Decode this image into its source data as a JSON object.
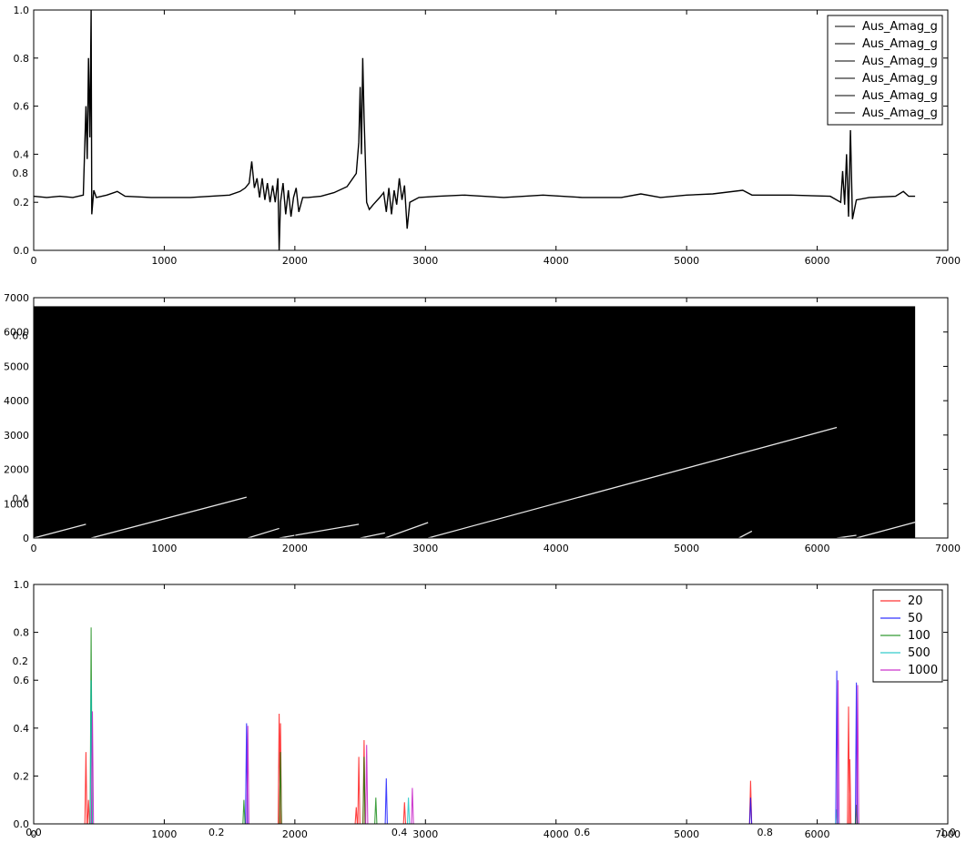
{
  "chart_data": [
    {
      "type": "line",
      "panel": "top",
      "xlim": [
        0,
        7000
      ],
      "ylim": [
        0.0,
        1.0
      ],
      "xticks": [
        "0",
        "1000",
        "2000",
        "3000",
        "4000",
        "5000",
        "6000",
        "7000"
      ],
      "yticks": [
        "0.0",
        "0.2",
        "0.4",
        "0.6",
        "0.8",
        "1.0"
      ],
      "legend_position": "top-right",
      "legend": [
        "Aus_Amag_g",
        "Aus_Amag_g",
        "Aus_Amag_g",
        "Aus_Amag_g",
        "Aus_Amag_g",
        "Aus_Amag_g"
      ],
      "series": [
        {
          "name": "Aus_Amag_g",
          "color": "#000000",
          "points": [
            [
              0,
              0.225
            ],
            [
              100,
              0.22
            ],
            [
              200,
              0.225
            ],
            [
              300,
              0.22
            ],
            [
              380,
              0.23
            ],
            [
              400,
              0.6
            ],
            [
              410,
              0.38
            ],
            [
              420,
              0.8
            ],
            [
              430,
              0.47
            ],
            [
              440,
              1.0
            ],
            [
              445,
              0.15
            ],
            [
              460,
              0.25
            ],
            [
              480,
              0.22
            ],
            [
              560,
              0.23
            ],
            [
              640,
              0.245
            ],
            [
              700,
              0.225
            ],
            [
              900,
              0.22
            ],
            [
              1200,
              0.22
            ],
            [
              1500,
              0.23
            ],
            [
              1580,
              0.245
            ],
            [
              1620,
              0.26
            ],
            [
              1650,
              0.28
            ],
            [
              1670,
              0.37
            ],
            [
              1690,
              0.26
            ],
            [
              1710,
              0.3
            ],
            [
              1730,
              0.22
            ],
            [
              1750,
              0.3
            ],
            [
              1770,
              0.21
            ],
            [
              1790,
              0.28
            ],
            [
              1810,
              0.2
            ],
            [
              1830,
              0.27
            ],
            [
              1850,
              0.2
            ],
            [
              1870,
              0.3
            ],
            [
              1880,
              0.0
            ],
            [
              1890,
              0.2
            ],
            [
              1910,
              0.28
            ],
            [
              1930,
              0.15
            ],
            [
              1950,
              0.25
            ],
            [
              1970,
              0.14
            ],
            [
              1990,
              0.22
            ],
            [
              2010,
              0.26
            ],
            [
              2030,
              0.16
            ],
            [
              2060,
              0.22
            ],
            [
              2100,
              0.22
            ],
            [
              2200,
              0.225
            ],
            [
              2300,
              0.24
            ],
            [
              2400,
              0.265
            ],
            [
              2470,
              0.32
            ],
            [
              2490,
              0.45
            ],
            [
              2500,
              0.68
            ],
            [
              2510,
              0.4
            ],
            [
              2520,
              0.8
            ],
            [
              2530,
              0.55
            ],
            [
              2550,
              0.2
            ],
            [
              2570,
              0.17
            ],
            [
              2600,
              0.19
            ],
            [
              2650,
              0.22
            ],
            [
              2680,
              0.24
            ],
            [
              2700,
              0.16
            ],
            [
              2720,
              0.26
            ],
            [
              2740,
              0.15
            ],
            [
              2760,
              0.25
            ],
            [
              2780,
              0.19
            ],
            [
              2800,
              0.3
            ],
            [
              2820,
              0.21
            ],
            [
              2840,
              0.27
            ],
            [
              2860,
              0.09
            ],
            [
              2880,
              0.2
            ],
            [
              2950,
              0.22
            ],
            [
              3100,
              0.225
            ],
            [
              3300,
              0.23
            ],
            [
              3600,
              0.22
            ],
            [
              3900,
              0.23
            ],
            [
              4200,
              0.22
            ],
            [
              4500,
              0.22
            ],
            [
              4650,
              0.235
            ],
            [
              4800,
              0.22
            ],
            [
              5000,
              0.23
            ],
            [
              5200,
              0.235
            ],
            [
              5430,
              0.25
            ],
            [
              5500,
              0.23
            ],
            [
              5800,
              0.23
            ],
            [
              6100,
              0.225
            ],
            [
              6180,
              0.2
            ],
            [
              6195,
              0.33
            ],
            [
              6210,
              0.19
            ],
            [
              6225,
              0.4
            ],
            [
              6240,
              0.14
            ],
            [
              6255,
              0.5
            ],
            [
              6270,
              0.13
            ],
            [
              6300,
              0.21
            ],
            [
              6400,
              0.22
            ],
            [
              6600,
              0.225
            ],
            [
              6660,
              0.245
            ],
            [
              6700,
              0.225
            ],
            [
              6750,
              0.225
            ]
          ]
        }
      ]
    },
    {
      "type": "heatmap",
      "panel": "middle",
      "xlim": [
        0,
        7000
      ],
      "ylim": [
        0,
        7000
      ],
      "xticks": [
        "0",
        "1000",
        "2000",
        "3000",
        "4000",
        "5000",
        "6000",
        "7000"
      ],
      "yticks": [
        "0",
        "1000",
        "2000",
        "3000",
        "4000",
        "5000",
        "6000",
        "7000"
      ],
      "background_color": "#000000",
      "trace_color": "#ffffff",
      "extent": [
        0,
        6750,
        0,
        6750
      ],
      "traces": [
        [
          [
            0,
            0
          ],
          [
            400,
            400
          ]
        ],
        [
          [
            440,
            0
          ],
          [
            1630,
            1190
          ]
        ],
        [
          [
            1640,
            0
          ],
          [
            1880,
            280
          ]
        ],
        [
          [
            1880,
            0
          ],
          [
            2490,
            400
          ]
        ],
        [
          [
            2500,
            0
          ],
          [
            2690,
            150
          ]
        ],
        [
          [
            2690,
            0
          ],
          [
            3020,
            450
          ]
        ],
        [
          [
            3020,
            0
          ],
          [
            6150,
            3220
          ]
        ],
        [
          [
            5400,
            0
          ],
          [
            5500,
            200
          ]
        ],
        [
          [
            6150,
            0
          ],
          [
            6300,
            80
          ]
        ],
        [
          [
            6300,
            0
          ],
          [
            6750,
            460
          ]
        ]
      ]
    },
    {
      "type": "line",
      "panel": "bottom",
      "xlim": [
        0,
        7000
      ],
      "ylim": [
        0.0,
        1.0
      ],
      "xticks": [
        "0",
        "1000",
        "2000",
        "3000",
        "4000",
        "5000",
        "6000",
        "7000"
      ],
      "yticks": [
        "0.0",
        "0.2",
        "0.4",
        "0.6",
        "0.8",
        "1.0"
      ],
      "legend_position": "top-right",
      "series": [
        {
          "name": "20",
          "color": "#ff0000",
          "peaks": [
            [
              400,
              0.3
            ],
            [
              420,
              0.1
            ],
            [
              1880,
              0.46
            ],
            [
              1890,
              0.42
            ],
            [
              2470,
              0.07
            ],
            [
              2490,
              0.28
            ],
            [
              2530,
              0.35
            ],
            [
              2840,
              0.09
            ],
            [
              5490,
              0.18
            ],
            [
              6240,
              0.49
            ],
            [
              6250,
              0.27
            ]
          ]
        },
        {
          "name": "50",
          "color": "#0000ff",
          "peaks": [
            [
              1630,
              0.42
            ],
            [
              2700,
              0.19
            ],
            [
              5490,
              0.11
            ],
            [
              6150,
              0.64
            ],
            [
              6300,
              0.59
            ]
          ]
        },
        {
          "name": "100",
          "color": "#008000",
          "peaks": [
            [
              440,
              0.82
            ],
            [
              1610,
              0.1
            ],
            [
              1890,
              0.3
            ],
            [
              2530,
              0.28
            ],
            [
              2620,
              0.11
            ],
            [
              6300,
              0.08
            ]
          ]
        },
        {
          "name": "500",
          "color": "#00bfbf",
          "peaks": [
            [
              440,
              0.6
            ],
            [
              2870,
              0.11
            ],
            [
              6150,
              0.06
            ]
          ]
        },
        {
          "name": "1000",
          "color": "#bf00bf",
          "peaks": [
            [
              450,
              0.47
            ],
            [
              1640,
              0.41
            ],
            [
              2550,
              0.33
            ],
            [
              2900,
              0.15
            ],
            [
              6160,
              0.6
            ],
            [
              6310,
              0.58
            ]
          ]
        }
      ]
    }
  ],
  "overlay": {
    "yticks_top": [
      "0.2",
      "0.4",
      "0.6",
      "0.8",
      "1.0"
    ],
    "yticks": [
      "0.0",
      "0.2",
      "0.4",
      "0.6",
      "0.8",
      "1.0"
    ],
    "xticks": [
      "0.0",
      "0.2",
      "0.4",
      "0.6",
      "0.8",
      "1.0"
    ]
  }
}
